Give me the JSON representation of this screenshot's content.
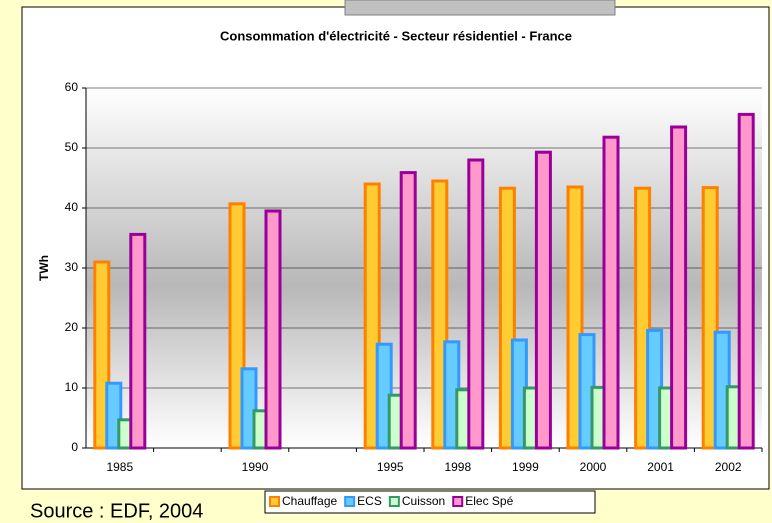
{
  "chart_data": {
    "type": "bar",
    "title": "Consommation d'électricité - Secteur résidentiel - France",
    "y_label": "TWh",
    "source": "Source : EDF, 2004",
    "categories": [
      "1985",
      null,
      "1990",
      null,
      "1995",
      "1998",
      "1999",
      "2000",
      "2001",
      "2002"
    ],
    "series": [
      {
        "name": "Chauffage",
        "color": "#ff8000",
        "fill": "#ffcc33",
        "values": [
          31,
          null,
          40.7,
          null,
          44,
          44.5,
          43.3,
          43.5,
          43.3,
          43.4
        ]
      },
      {
        "name": "ECS",
        "color": "#3399ff",
        "fill": "#66ccff",
        "values": [
          10.8,
          null,
          13.2,
          null,
          17.3,
          17.7,
          18,
          18.9,
          19.6,
          19.3
        ]
      },
      {
        "name": "Cuisson",
        "color": "#339966",
        "fill": "#ccffcc",
        "values": [
          4.7,
          null,
          6.2,
          null,
          8.8,
          9.7,
          10,
          10.1,
          10,
          10.2
        ]
      },
      {
        "name": "Elec Spé",
        "color": "#990099",
        "fill": "#ff99cc",
        "values": [
          35.6,
          null,
          39.5,
          null,
          45.9,
          48,
          49.3,
          51.8,
          53.5,
          55.6
        ]
      }
    ],
    "ylim": [
      0,
      60
    ],
    "yticks": [
      0,
      10,
      20,
      30,
      40,
      50,
      60
    ],
    "grid": true,
    "legend": "bottom"
  }
}
